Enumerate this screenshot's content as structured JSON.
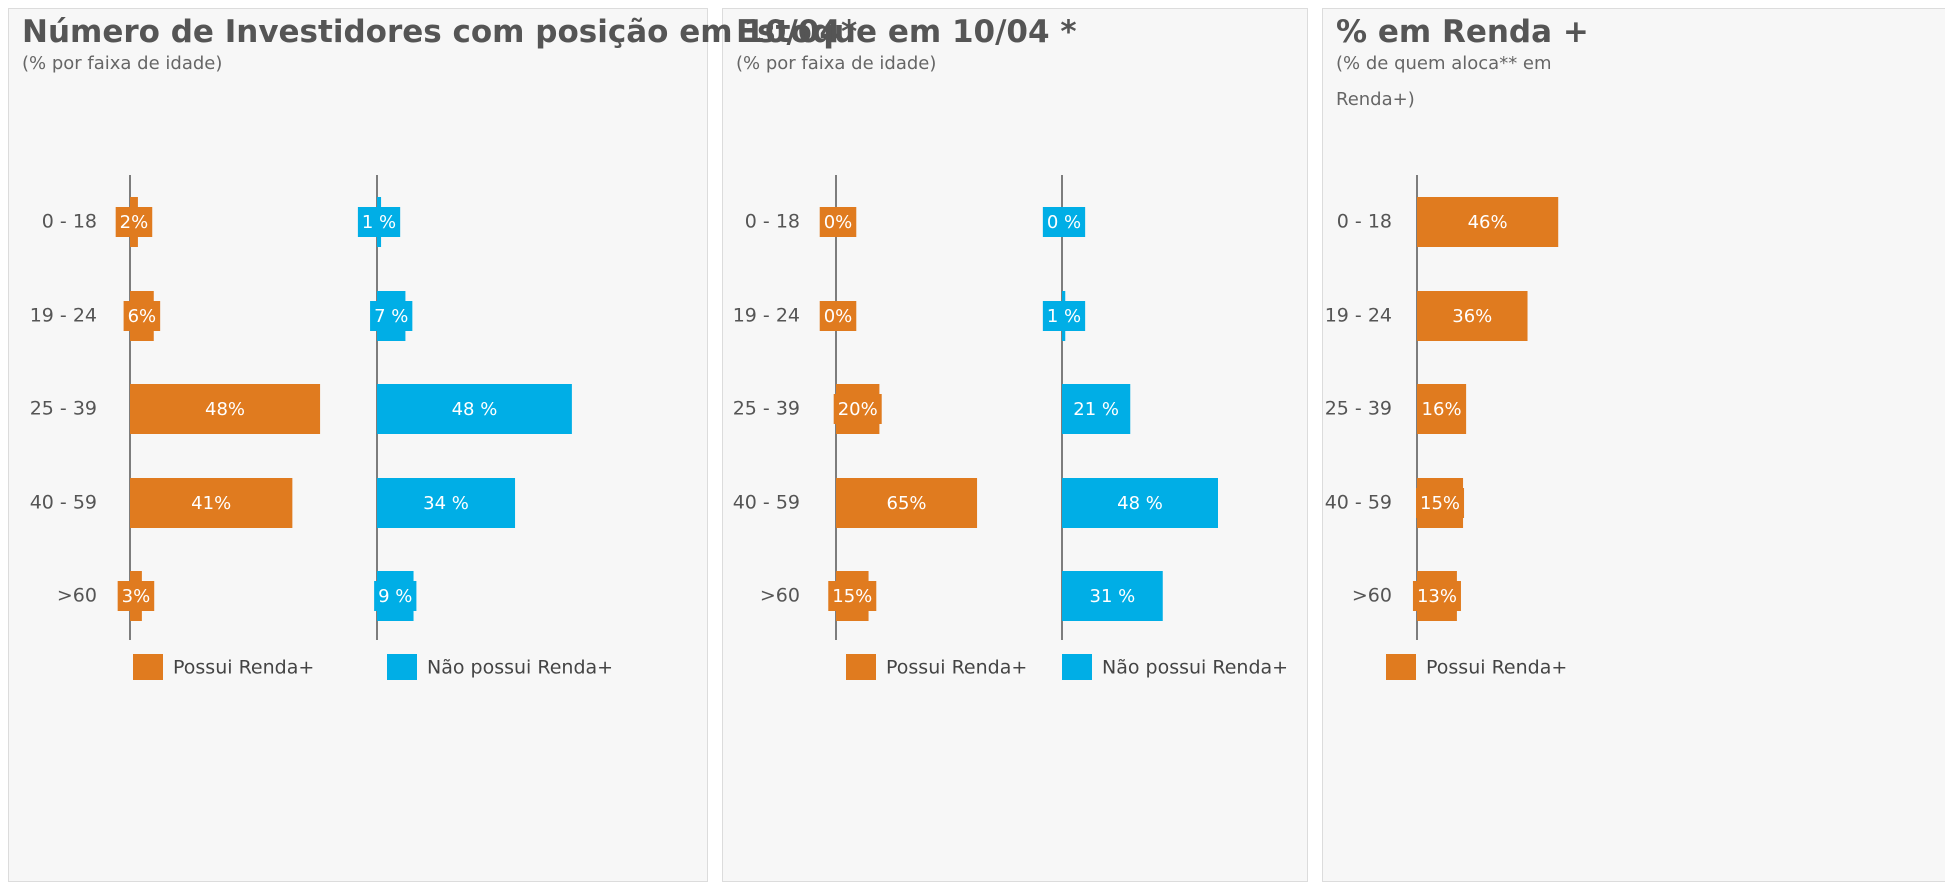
{
  "chart_data": [
    {
      "type": "bar",
      "title": "Número de Investidores com posição em 10/04*",
      "subtitle": "(% por faixa de idade)",
      "categories": [
        "0 - 18",
        "19 - 24",
        "25 - 39",
        "40 - 59",
        ">60"
      ],
      "series": [
        {
          "name": "Possui Renda+",
          "color": "#e07b1f",
          "values": [
            2,
            6,
            48,
            41,
            3
          ],
          "value_labels": [
            "2%",
            "6%",
            "48%",
            "41%",
            "3%"
          ]
        },
        {
          "name": "Não possui Renda+",
          "color": "#00aee6",
          "values": [
            1,
            7,
            48,
            34,
            9
          ],
          "value_labels": [
            "1 %",
            "7 %",
            "48 %",
            "34 %",
            "9 %"
          ]
        }
      ]
    },
    {
      "type": "bar",
      "title": "Estoque em 10/04 *",
      "subtitle": "(% por faixa de idade)",
      "categories": [
        "0 - 18",
        "19 - 24",
        "25 - 39",
        "40 - 59",
        ">60"
      ],
      "series": [
        {
          "name": "Possui Renda+",
          "color": "#e07b1f",
          "values": [
            0,
            0,
            20,
            65,
            15
          ],
          "value_labels": [
            "0%",
            "0%",
            "20%",
            "65%",
            "15%"
          ]
        },
        {
          "name": "Não possui Renda+",
          "color": "#00aee6",
          "values": [
            0,
            1,
            21,
            48,
            31
          ],
          "value_labels": [
            "0 %",
            "1 %",
            "21 %",
            "48 %",
            "31 %"
          ]
        }
      ]
    },
    {
      "type": "bar",
      "title": "% em Renda +",
      "subtitle": "(% de quem aloca** em Renda+)",
      "categories": [
        "0 - 18",
        "19 - 24",
        "25 - 39",
        "40 - 59",
        ">60"
      ],
      "series": [
        {
          "name": "Possui Renda+",
          "color": "#e07b1f",
          "values": [
            46,
            36,
            16,
            15,
            13
          ],
          "value_labels": [
            "46%",
            "36%",
            "16%",
            "15%",
            "13%"
          ]
        }
      ]
    }
  ]
}
